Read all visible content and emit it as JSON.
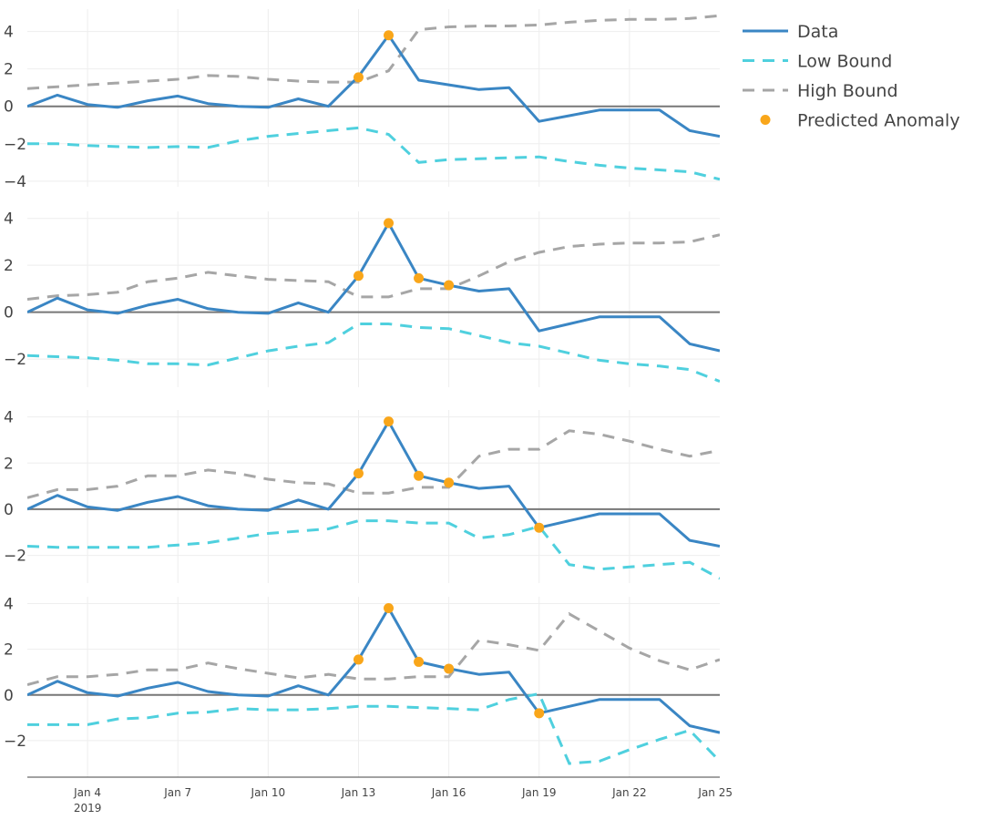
{
  "chart_data": {
    "type": "line",
    "title": "",
    "xlabel": "",
    "ylabel": "",
    "x_ticks": [
      {
        "day": 4,
        "label": "Jan 4",
        "sublabel": "2019"
      },
      {
        "day": 7,
        "label": "Jan 7"
      },
      {
        "day": 10,
        "label": "Jan 10"
      },
      {
        "day": 13,
        "label": "Jan 13"
      },
      {
        "day": 16,
        "label": "Jan 16"
      },
      {
        "day": 19,
        "label": "Jan 19"
      },
      {
        "day": 22,
        "label": "Jan 22"
      },
      {
        "day": 25,
        "label": "Jan 25"
      }
    ],
    "x_range": [
      2.0,
      25.0
    ],
    "x_days": [
      2,
      3,
      4,
      5,
      6,
      7,
      8,
      9,
      10,
      11,
      12,
      13,
      14,
      15,
      16,
      17,
      18,
      19,
      20,
      21,
      22,
      23,
      24,
      25
    ],
    "legend": [
      {
        "name": "Data",
        "style": "solid",
        "color": "#3a86c4"
      },
      {
        "name": "Low Bound",
        "style": "dash",
        "color": "#4fd0de"
      },
      {
        "name": "High Bound",
        "style": "dash",
        "color": "#a6a6a6"
      },
      {
        "name": "Predicted Anomaly",
        "style": "marker",
        "color": "#f9a61a"
      }
    ],
    "panels": [
      {
        "ylim": [
          -4.3,
          5.2
        ],
        "y_ticks": [
          -4,
          -2,
          0,
          2,
          4
        ],
        "y_tick_labels": [
          "−4",
          "−2",
          "0",
          "2",
          "4"
        ],
        "series": [
          {
            "name": "Data",
            "values": [
              0.0,
              0.6,
              0.1,
              -0.05,
              0.3,
              0.55,
              0.15,
              0.0,
              -0.05,
              0.4,
              0.0,
              1.6,
              3.8,
              1.4,
              1.15,
              0.9,
              1.0,
              -0.8,
              -0.5,
              -0.2,
              -0.2,
              -0.2,
              -1.3,
              -1.6
            ]
          },
          {
            "name": "Low Bound",
            "values": [
              -2.0,
              -2.0,
              -2.1,
              -2.15,
              -2.2,
              -2.15,
              -2.2,
              -1.85,
              -1.6,
              -1.45,
              -1.3,
              -1.15,
              -1.5,
              -3.0,
              -2.85,
              -2.8,
              -2.75,
              -2.7,
              -2.95,
              -3.15,
              -3.3,
              -3.4,
              -3.5,
              -3.9
            ]
          },
          {
            "name": "High Bound",
            "values": [
              0.95,
              1.05,
              1.15,
              1.25,
              1.35,
              1.45,
              1.65,
              1.6,
              1.45,
              1.35,
              1.3,
              1.3,
              1.9,
              4.1,
              4.25,
              4.3,
              4.3,
              4.35,
              4.5,
              4.6,
              4.65,
              4.65,
              4.7,
              4.85
            ]
          },
          {
            "name": "Predicted Anomaly",
            "x": [
              13,
              14
            ],
            "values": [
              1.55,
              3.8
            ]
          }
        ]
      },
      {
        "ylim": [
          -3.2,
          4.3
        ],
        "y_ticks": [
          -2,
          0,
          2,
          4
        ],
        "y_tick_labels": [
          "−2",
          "0",
          "2",
          "4"
        ],
        "series": [
          {
            "name": "Data",
            "values": [
              0.0,
              0.6,
              0.1,
              -0.05,
              0.3,
              0.55,
              0.15,
              0.0,
              -0.05,
              0.4,
              0.0,
              1.55,
              3.8,
              1.45,
              1.15,
              0.9,
              1.0,
              -0.8,
              -0.5,
              -0.2,
              -0.2,
              -0.2,
              -1.35,
              -1.65
            ]
          },
          {
            "name": "Low Bound",
            "values": [
              -1.85,
              -1.9,
              -1.95,
              -2.05,
              -2.2,
              -2.2,
              -2.25,
              -1.95,
              -1.65,
              -1.45,
              -1.3,
              -0.5,
              -0.5,
              -0.65,
              -0.7,
              -1.0,
              -1.3,
              -1.45,
              -1.75,
              -2.05,
              -2.2,
              -2.3,
              -2.45,
              -2.95
            ]
          },
          {
            "name": "High Bound",
            "values": [
              0.55,
              0.7,
              0.75,
              0.85,
              1.3,
              1.45,
              1.7,
              1.55,
              1.4,
              1.35,
              1.3,
              0.65,
              0.65,
              1.0,
              1.0,
              1.55,
              2.15,
              2.55,
              2.8,
              2.9,
              2.95,
              2.95,
              3.0,
              3.3
            ]
          },
          {
            "name": "Predicted Anomaly",
            "x": [
              13,
              14,
              15,
              16
            ],
            "values": [
              1.55,
              3.8,
              1.45,
              1.15
            ]
          }
        ]
      },
      {
        "ylim": [
          -3.2,
          4.3
        ],
        "y_ticks": [
          -2,
          0,
          2,
          4
        ],
        "y_tick_labels": [
          "−2",
          "0",
          "2",
          "4"
        ],
        "series": [
          {
            "name": "Data",
            "values": [
              0.0,
              0.6,
              0.1,
              -0.05,
              0.3,
              0.55,
              0.15,
              0.0,
              -0.05,
              0.4,
              0.0,
              1.55,
              3.8,
              1.45,
              1.15,
              0.9,
              1.0,
              -0.8,
              -0.5,
              -0.2,
              -0.2,
              -0.2,
              -1.35,
              -1.6
            ]
          },
          {
            "name": "Low Bound",
            "values": [
              -1.6,
              -1.65,
              -1.65,
              -1.65,
              -1.65,
              -1.55,
              -1.45,
              -1.25,
              -1.05,
              -0.95,
              -0.85,
              -0.5,
              -0.5,
              -0.6,
              -0.6,
              -1.25,
              -1.1,
              -0.75,
              -2.4,
              -2.6,
              -2.5,
              -2.4,
              -2.3,
              -3.0
            ]
          },
          {
            "name": "High Bound",
            "values": [
              0.5,
              0.85,
              0.85,
              1.0,
              1.45,
              1.45,
              1.7,
              1.55,
              1.3,
              1.15,
              1.1,
              0.7,
              0.7,
              0.95,
              0.95,
              2.3,
              2.6,
              2.6,
              3.4,
              3.25,
              2.95,
              2.6,
              2.3,
              2.55
            ]
          },
          {
            "name": "Predicted Anomaly",
            "x": [
              13,
              14,
              15,
              16,
              19
            ],
            "values": [
              1.55,
              3.8,
              1.45,
              1.15,
              -0.8
            ]
          }
        ]
      },
      {
        "ylim": [
          -3.6,
          4.3
        ],
        "y_ticks": [
          -2,
          0,
          2,
          4
        ],
        "y_tick_labels": [
          "−2",
          "0",
          "2",
          "4"
        ],
        "series": [
          {
            "name": "Data",
            "values": [
              0.0,
              0.6,
              0.1,
              -0.05,
              0.3,
              0.55,
              0.15,
              0.0,
              -0.05,
              0.4,
              0.0,
              1.55,
              3.8,
              1.45,
              1.15,
              0.9,
              1.0,
              -0.8,
              -0.5,
              -0.2,
              -0.2,
              -0.2,
              -1.35,
              -1.65
            ]
          },
          {
            "name": "Low Bound",
            "values": [
              -1.3,
              -1.3,
              -1.3,
              -1.05,
              -1.0,
              -0.8,
              -0.75,
              -0.6,
              -0.65,
              -0.65,
              -0.6,
              -0.5,
              -0.5,
              -0.55,
              -0.6,
              -0.65,
              -0.2,
              0.05,
              -3.0,
              -2.9,
              -2.4,
              -1.95,
              -1.55,
              -2.9
            ]
          },
          {
            "name": "High Bound",
            "values": [
              0.45,
              0.8,
              0.8,
              0.9,
              1.1,
              1.1,
              1.4,
              1.15,
              0.95,
              0.75,
              0.9,
              0.7,
              0.7,
              0.8,
              0.8,
              2.4,
              2.2,
              1.95,
              3.55,
              2.8,
              2.05,
              1.5,
              1.1,
              1.55
            ]
          },
          {
            "name": "Predicted Anomaly",
            "x": [
              13,
              14,
              15,
              16,
              19
            ],
            "values": [
              1.55,
              3.8,
              1.45,
              1.15,
              -0.8
            ]
          }
        ]
      }
    ]
  }
}
